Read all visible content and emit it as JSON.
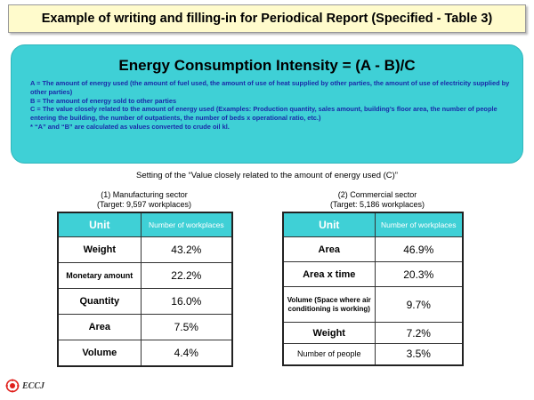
{
  "title": "Example of writing and filling-in for Periodical Report (Specified - Table 3)",
  "formula": "Energy Consumption Intensity = (A - B)/C",
  "definitions": [
    "A = The amount of energy used (the amount of fuel used, the amount of use of heat supplied by other parties, the amount of use of electricity supplied by other parties)",
    "B = The amount of energy sold to other parties",
    "C = The value closely related to the amount of energy used (Examples: Production quantity, sales amount, building’s floor area, the number of people entering the building, the number of outpatients, the number of beds x operational ratio, etc.)",
    "* “A” and “B” are calculated as values converted to crude oil kl."
  ],
  "setting_title": "Setting of the  “Value closely related to the amount of energy used (C)”",
  "manufacturing": {
    "title": "(1) Manufacturing sector",
    "target": "(Target: 9,597 workplaces)",
    "header_unit": "Unit",
    "header_count": "Number of workplaces",
    "rows": [
      {
        "unit": "Weight",
        "value": "43.2%"
      },
      {
        "unit": "Monetary amount",
        "value": "22.2%"
      },
      {
        "unit": "Quantity",
        "value": "16.0%"
      },
      {
        "unit": "Area",
        "value": "7.5%"
      },
      {
        "unit": "Volume",
        "value": "4.4%"
      }
    ]
  },
  "commercial": {
    "title": "(2) Commercial sector",
    "target": "(Target: 5,186 workplaces)",
    "header_unit": "Unit",
    "header_count": "Number of workplaces",
    "rows": [
      {
        "unit": "Area",
        "value": "46.9%"
      },
      {
        "unit": "Area x time",
        "value": "20.3%"
      },
      {
        "unit": "Volume (Space where air conditioning is working)",
        "value": "9.7%"
      },
      {
        "unit": "Weight",
        "value": "7.2%"
      },
      {
        "unit": "Number of people",
        "value": "3.5%"
      }
    ]
  },
  "logo_text": "ECCJ",
  "colors": {
    "title_bg": "#fffbcc",
    "teal": "#3fd0d6",
    "definition_text": "#1a2aa8",
    "logo_red": "#e0201c"
  }
}
